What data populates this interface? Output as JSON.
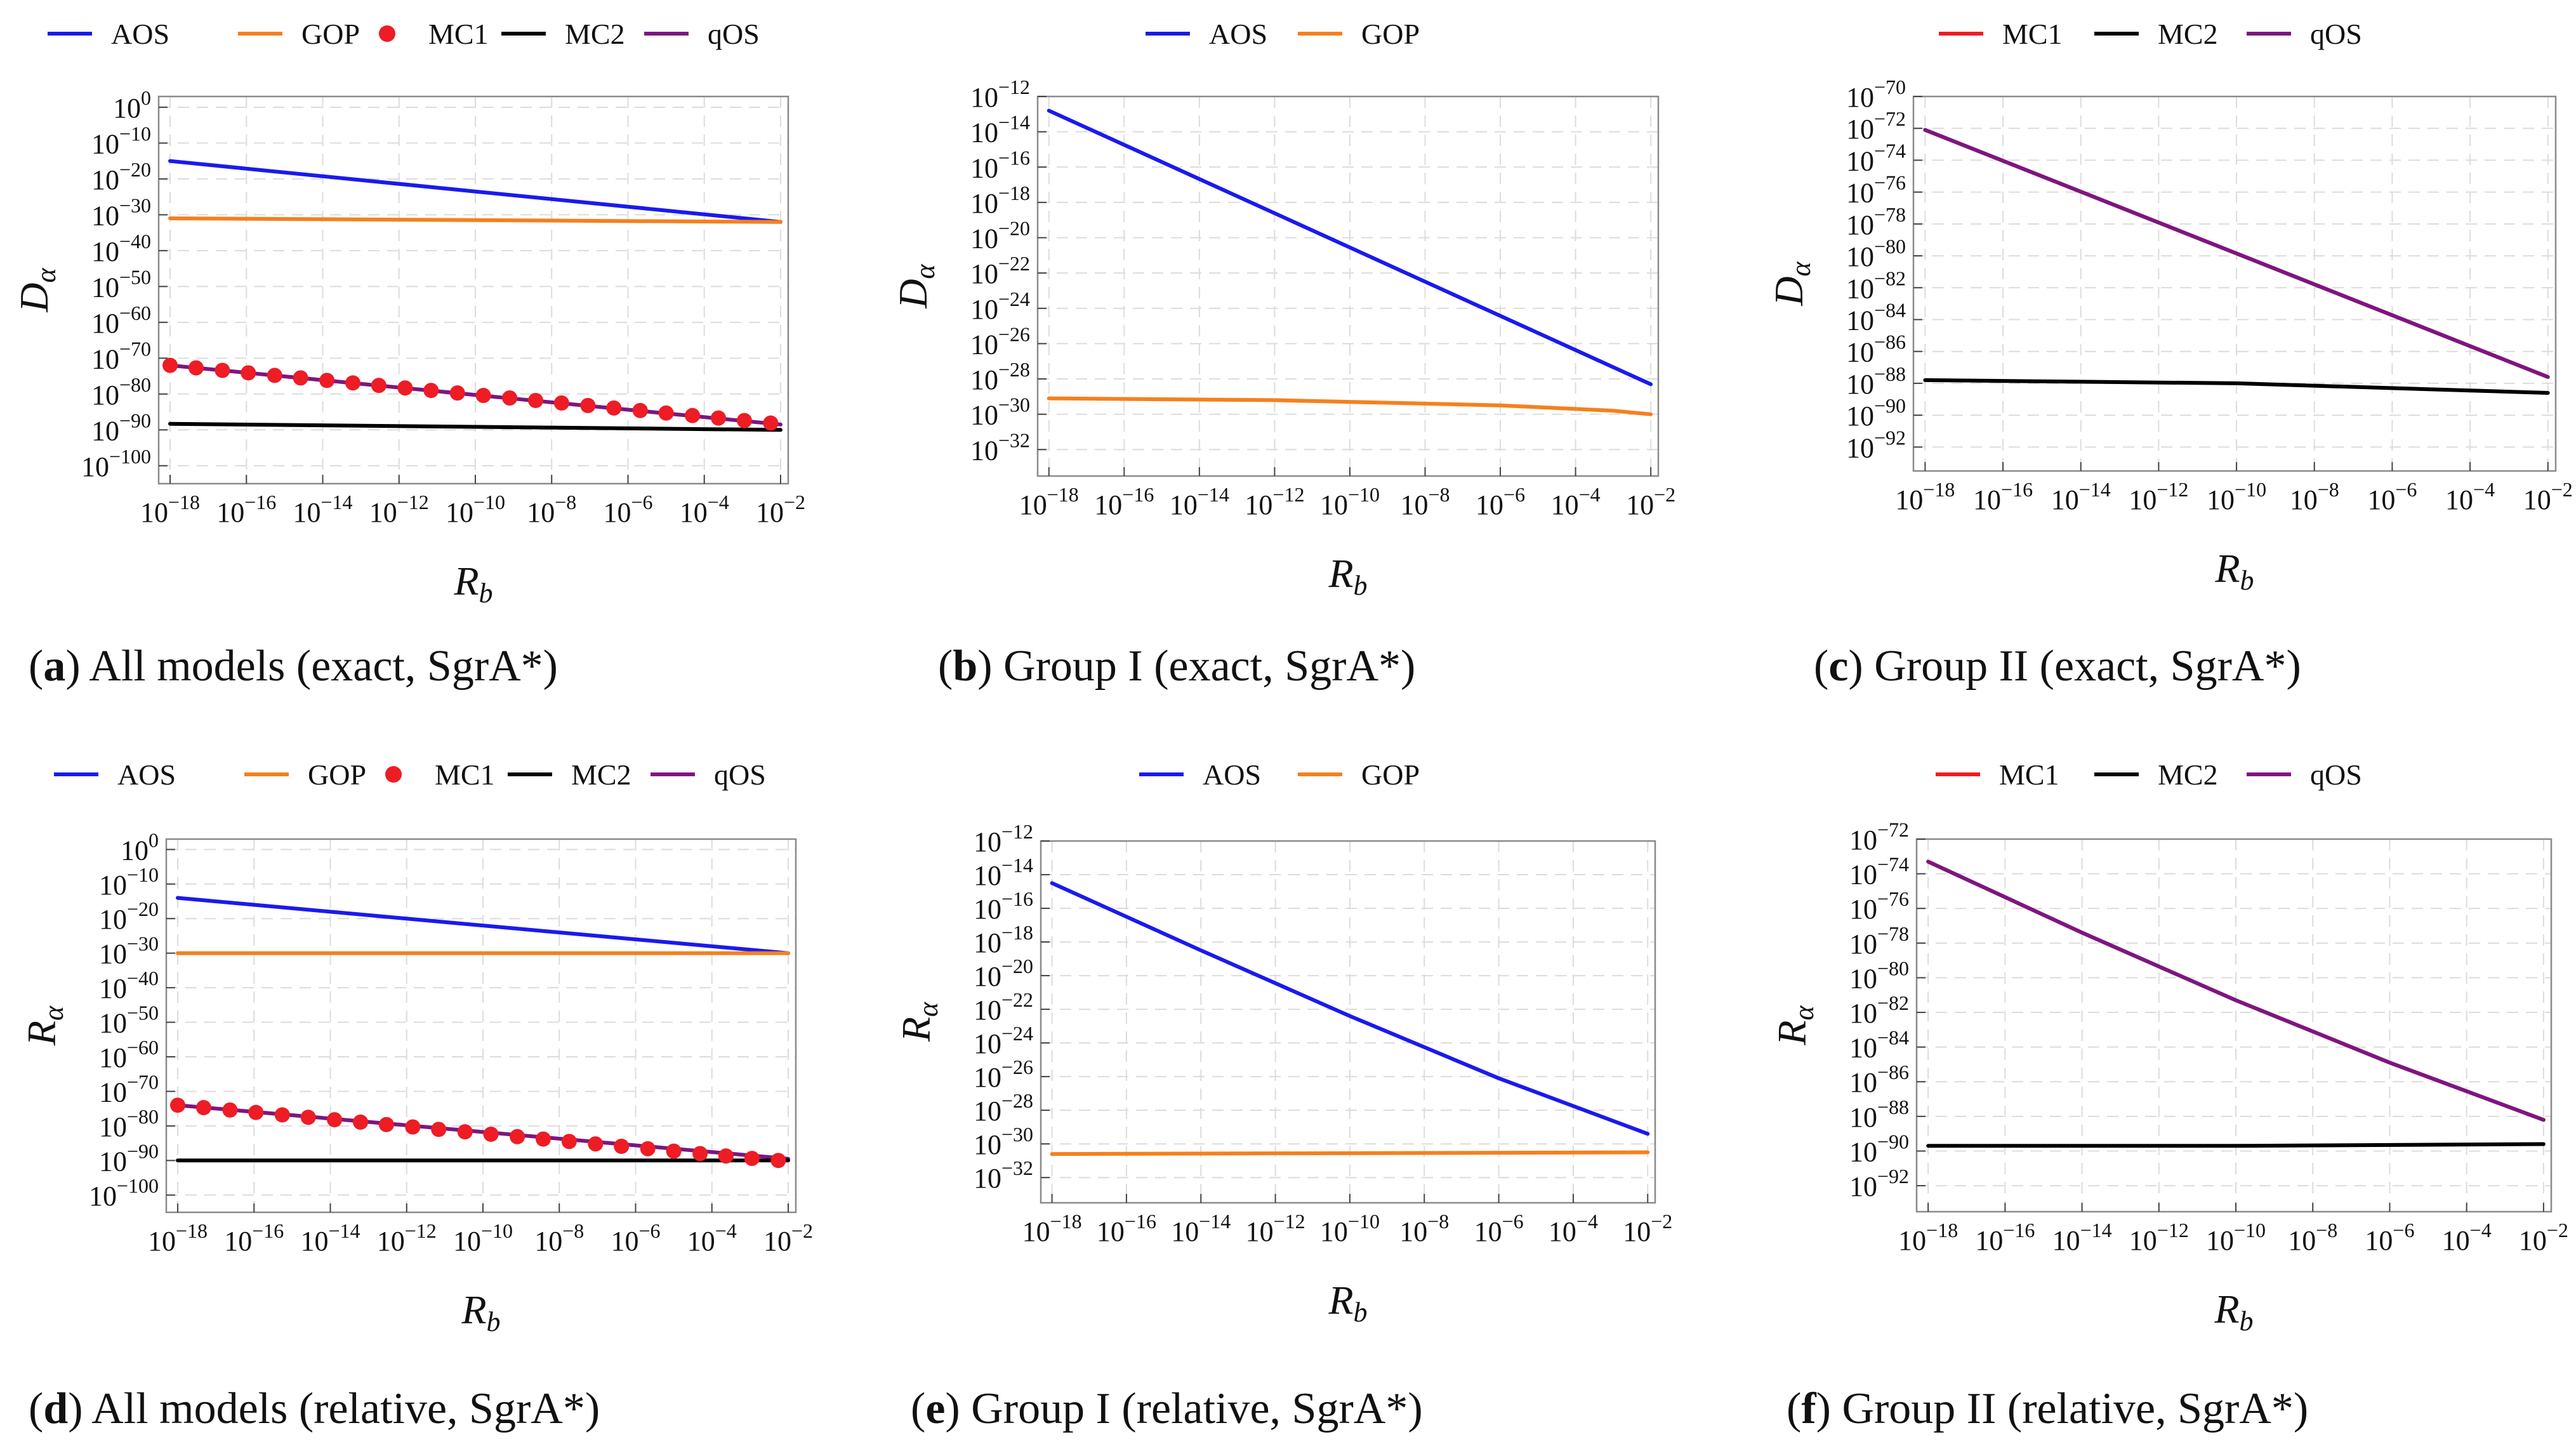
{
  "colors": {
    "AOS": "#1a1aee",
    "GOP": "#f5801e",
    "MC1": "#ee1c25",
    "MC2": "#000000",
    "qOS": "#7d1680",
    "grid": "#dcdcdc",
    "frame": "#8a8a8a"
  },
  "captions": [
    {
      "letter": "a",
      "text": "All models (exact, SgrA*)"
    },
    {
      "letter": "b",
      "text": "Group I (exact, SgrA*)"
    },
    {
      "letter": "c",
      "text": "Group II (exact, SgrA*)"
    },
    {
      "letter": "d",
      "text": "All models (relative, SgrA*)"
    },
    {
      "letter": "e",
      "text": "Group I (relative, SgrA*)"
    },
    {
      "letter": "f",
      "text": "Group II (relative, SgrA*)"
    }
  ],
  "chart_data": [
    {
      "type": "line",
      "panel": "a",
      "xlabel": "R_b",
      "ylabel": "D_α",
      "xscale": "log",
      "yscale": "log",
      "xlim_exp": [
        -18.3,
        -1.8
      ],
      "ylim_exp": [
        -105,
        3
      ],
      "x_ticks_exp": [
        -18,
        -16,
        -14,
        -12,
        -10,
        -8,
        -6,
        -4,
        -2
      ],
      "y_ticks_exp": [
        0,
        -10,
        -20,
        -30,
        -40,
        -50,
        -60,
        -70,
        -80,
        -90,
        -100
      ],
      "legend": [
        "AOS",
        "GOP",
        "MC1",
        "MC2",
        "qOS"
      ],
      "series": [
        {
          "name": "AOS",
          "style": "line",
          "x_exp": [
            -18,
            -2
          ],
          "y_exp": [
            -15,
            -32
          ]
        },
        {
          "name": "GOP",
          "style": "line",
          "x_exp": [
            -18,
            -2
          ],
          "y_exp": [
            -31,
            -32
          ]
        },
        {
          "name": "qOS",
          "style": "line",
          "x_exp": [
            -18,
            -2
          ],
          "y_exp": [
            -72,
            -88.5
          ]
        },
        {
          "name": "MC1",
          "style": "markers",
          "x_exp": [
            -18,
            -17.32,
            -16.63,
            -15.95,
            -15.26,
            -14.58,
            -13.89,
            -13.21,
            -12.53,
            -11.84,
            -11.16,
            -10.47,
            -9.79,
            -9.1,
            -8.42,
            -7.74,
            -7.05,
            -6.37,
            -5.68,
            -5,
            -4.31,
            -3.63,
            -2.95,
            -2.26
          ],
          "y_exp": [
            -72,
            -72.7,
            -73.4,
            -74.1,
            -74.8,
            -75.5,
            -76.2,
            -76.9,
            -77.6,
            -78.3,
            -79,
            -79.7,
            -80.4,
            -81.1,
            -81.8,
            -82.5,
            -83.2,
            -83.9,
            -84.6,
            -85.3,
            -86,
            -86.7,
            -87.4,
            -88.1
          ]
        },
        {
          "name": "MC2",
          "style": "line",
          "x_exp": [
            -18,
            -2
          ],
          "y_exp": [
            -88.3,
            -90
          ]
        }
      ]
    },
    {
      "type": "line",
      "panel": "b",
      "xlabel": "R_b",
      "ylabel": "D_α",
      "xscale": "log",
      "yscale": "log",
      "xlim_exp": [
        -18.3,
        -1.8
      ],
      "ylim_exp": [
        -33.5,
        -12
      ],
      "x_ticks_exp": [
        -18,
        -16,
        -14,
        -12,
        -10,
        -8,
        -6,
        -4,
        -2
      ],
      "y_ticks_exp": [
        -12,
        -14,
        -16,
        -18,
        -20,
        -22,
        -24,
        -26,
        -28,
        -30,
        -32
      ],
      "legend": [
        "AOS",
        "GOP"
      ],
      "series": [
        {
          "name": "AOS",
          "style": "line",
          "x_exp": [
            -18,
            -2
          ],
          "y_exp": [
            -12.8,
            -28.3
          ]
        },
        {
          "name": "GOP",
          "style": "line",
          "x_exp": [
            -18,
            -12,
            -6,
            -3,
            -2
          ],
          "y_exp": [
            -29.1,
            -29.2,
            -29.5,
            -29.8,
            -30
          ]
        }
      ]
    },
    {
      "type": "line",
      "panel": "c",
      "xlabel": "R_b",
      "ylabel": "D_α",
      "xscale": "log",
      "yscale": "log",
      "xlim_exp": [
        -18.3,
        -1.8
      ],
      "ylim_exp": [
        -93.5,
        -70
      ],
      "x_ticks_exp": [
        -18,
        -16,
        -14,
        -12,
        -10,
        -8,
        -6,
        -4,
        -2
      ],
      "y_ticks_exp": [
        -70,
        -72,
        -74,
        -76,
        -78,
        -80,
        -82,
        -84,
        -86,
        -88,
        -90,
        -92
      ],
      "legend": [
        "MC1",
        "MC2",
        "qOS"
      ],
      "series": [
        {
          "name": "MC1",
          "style": "line",
          "x_exp": [
            -18,
            -2
          ],
          "y_exp": [
            -72.1,
            -87.6
          ]
        },
        {
          "name": "qOS",
          "style": "line",
          "x_exp": [
            -18,
            -2
          ],
          "y_exp": [
            -72.1,
            -87.6
          ]
        },
        {
          "name": "MC2",
          "style": "line",
          "x_exp": [
            -18,
            -10,
            -2
          ],
          "y_exp": [
            -87.8,
            -88,
            -88.6
          ]
        }
      ]
    },
    {
      "type": "line",
      "panel": "d",
      "xlabel": "R_b",
      "ylabel": "R_α",
      "xscale": "log",
      "yscale": "log",
      "xlim_exp": [
        -18.3,
        -1.8
      ],
      "ylim_exp": [
        -105,
        3
      ],
      "x_ticks_exp": [
        -18,
        -16,
        -14,
        -12,
        -10,
        -8,
        -6,
        -4,
        -2
      ],
      "y_ticks_exp": [
        0,
        -10,
        -20,
        -30,
        -40,
        -50,
        -60,
        -70,
        -80,
        -90,
        -100
      ],
      "legend": [
        "AOS",
        "GOP",
        "MC1",
        "MC2",
        "qOS"
      ],
      "series": [
        {
          "name": "AOS",
          "style": "line",
          "x_exp": [
            -18,
            -2
          ],
          "y_exp": [
            -14,
            -30
          ]
        },
        {
          "name": "GOP",
          "style": "line",
          "x_exp": [
            -18,
            -2
          ],
          "y_exp": [
            -30,
            -30
          ]
        },
        {
          "name": "qOS",
          "style": "line",
          "x_exp": [
            -18,
            -2
          ],
          "y_exp": [
            -74,
            -89.5
          ]
        },
        {
          "name": "MC1",
          "style": "markers",
          "x_exp": [
            -18,
            -17.32,
            -16.63,
            -15.95,
            -15.26,
            -14.58,
            -13.89,
            -13.21,
            -12.53,
            -11.84,
            -11.16,
            -10.47,
            -9.79,
            -9.1,
            -8.42,
            -7.74,
            -7.05,
            -6.37,
            -5.68,
            -5,
            -4.31,
            -3.63,
            -2.95,
            -2.26
          ],
          "y_exp": [
            -74,
            -74.7,
            -75.4,
            -76.1,
            -76.8,
            -77.5,
            -78.2,
            -78.9,
            -79.6,
            -80.3,
            -81,
            -81.7,
            -82.4,
            -83.1,
            -83.8,
            -84.5,
            -85.2,
            -85.9,
            -86.6,
            -87.3,
            -88,
            -88.7,
            -89.4,
            -90
          ]
        },
        {
          "name": "MC2",
          "style": "line",
          "x_exp": [
            -18,
            -2
          ],
          "y_exp": [
            -90,
            -90
          ]
        }
      ]
    },
    {
      "type": "line",
      "panel": "e",
      "xlabel": "R_b",
      "ylabel": "R_α",
      "xscale": "log",
      "yscale": "log",
      "xlim_exp": [
        -18.3,
        -1.8
      ],
      "ylim_exp": [
        -33.5,
        -12
      ],
      "x_ticks_exp": [
        -18,
        -16,
        -14,
        -12,
        -10,
        -8,
        -6,
        -4,
        -2
      ],
      "y_ticks_exp": [
        -12,
        -14,
        -16,
        -18,
        -20,
        -22,
        -24,
        -26,
        -28,
        -30,
        -32
      ],
      "legend": [
        "AOS",
        "GOP"
      ],
      "series": [
        {
          "name": "AOS",
          "style": "line",
          "x_exp": [
            -18,
            -14,
            -10,
            -6,
            -2
          ],
          "y_exp": [
            -14.5,
            -18.5,
            -22.4,
            -26.1,
            -29.4
          ]
        },
        {
          "name": "GOP",
          "style": "line",
          "x_exp": [
            -18,
            -2
          ],
          "y_exp": [
            -30.6,
            -30.5
          ]
        }
      ]
    },
    {
      "type": "line",
      "panel": "f",
      "xlabel": "R_b",
      "ylabel": "R_α",
      "xscale": "log",
      "yscale": "log",
      "xlim_exp": [
        -18.3,
        -1.8
      ],
      "ylim_exp": [
        -93.5,
        -72
      ],
      "x_ticks_exp": [
        -18,
        -16,
        -14,
        -12,
        -10,
        -8,
        -6,
        -4,
        -2
      ],
      "y_ticks_exp": [
        -72,
        -74,
        -76,
        -78,
        -80,
        -82,
        -84,
        -86,
        -88,
        -90,
        -92
      ],
      "legend": [
        "MC1",
        "MC2",
        "qOS"
      ],
      "series": [
        {
          "name": "MC1",
          "style": "line",
          "x_exp": [
            -18,
            -14,
            -10,
            -6,
            -2
          ],
          "y_exp": [
            -73.3,
            -77.4,
            -81.3,
            -84.9,
            -88.2
          ]
        },
        {
          "name": "qOS",
          "style": "line",
          "x_exp": [
            -18,
            -14,
            -10,
            -6,
            -2
          ],
          "y_exp": [
            -73.3,
            -77.4,
            -81.3,
            -84.9,
            -88.2
          ]
        },
        {
          "name": "MC2",
          "style": "line",
          "x_exp": [
            -18,
            -10,
            -2
          ],
          "y_exp": [
            -89.7,
            -89.7,
            -89.6
          ]
        }
      ]
    }
  ]
}
